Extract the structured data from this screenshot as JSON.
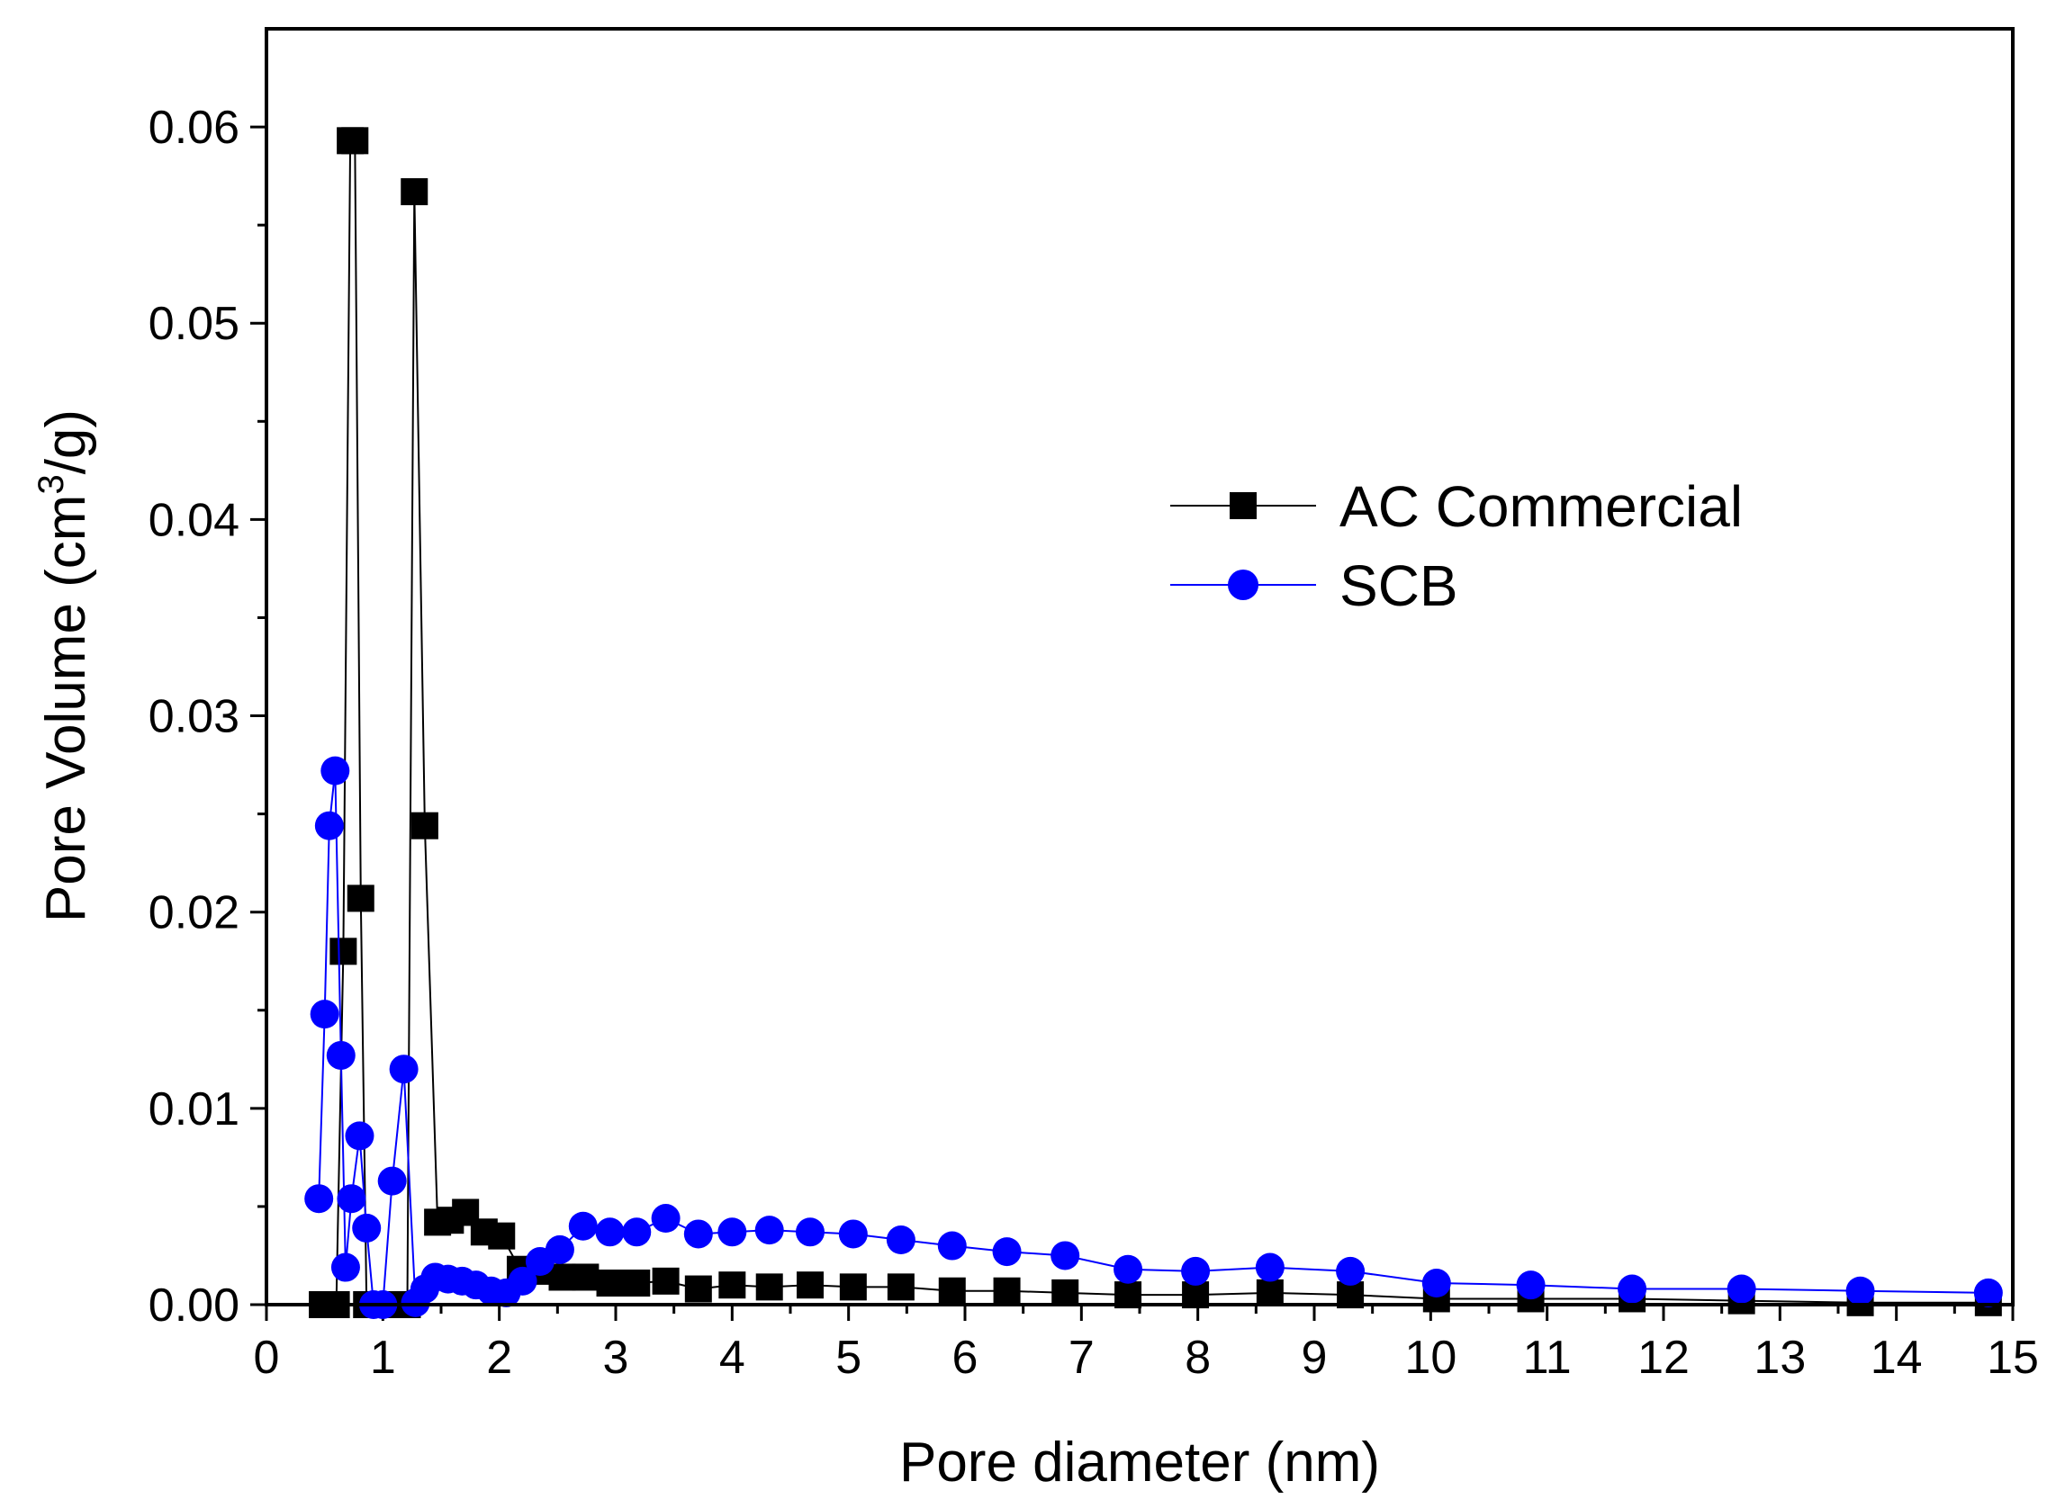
{
  "chart_data": {
    "type": "line",
    "title": "",
    "xlabel": "Pore diameter (nm)",
    "ylabel_main": "Pore Volume (cm",
    "ylabel_sup": "3",
    "ylabel_end": "/g)",
    "xlim": [
      0,
      15
    ],
    "ylim": [
      0,
      0.065
    ],
    "x_ticks": [
      "0",
      "1",
      "2",
      "3",
      "4",
      "5",
      "6",
      "7",
      "8",
      "9",
      "10",
      "11",
      "12",
      "13",
      "14",
      "15"
    ],
    "y_ticks": [
      "0.00",
      "0.01",
      "0.02",
      "0.03",
      "0.04",
      "0.05",
      "0.06"
    ],
    "grid": false,
    "legend_position": "center-right",
    "series": [
      {
        "name": "AC Commercial",
        "color": "#000000",
        "marker": "square",
        "x": [
          0.48,
          0.54,
          0.6,
          0.66,
          0.72,
          0.76,
          0.81,
          0.86,
          0.92,
          0.98,
          1.04,
          1.1,
          1.16,
          1.21,
          1.27,
          1.36,
          1.47,
          1.58,
          1.71,
          1.87,
          2.02,
          2.18,
          2.35,
          2.54,
          2.74,
          2.95,
          3.18,
          3.43,
          3.71,
          4.0,
          4.32,
          4.67,
          5.04,
          5.45,
          5.89,
          6.36,
          6.86,
          7.4,
          7.98,
          8.62,
          9.31,
          10.05,
          10.86,
          11.73,
          12.67,
          13.69,
          14.79
        ],
        "y": [
          0.0,
          0.0,
          0.0,
          0.018,
          0.0593,
          0.0593,
          0.0207,
          0.0,
          0.0,
          0.0,
          0.0,
          0.0,
          0.0,
          0.0,
          0.0567,
          0.0244,
          0.0042,
          0.0043,
          0.0047,
          0.0037,
          0.0035,
          0.0018,
          0.0017,
          0.0014,
          0.0014,
          0.0011,
          0.0011,
          0.0012,
          0.0008,
          0.001,
          0.0009,
          0.001,
          0.0009,
          0.0009,
          0.0007,
          0.0007,
          0.0006,
          0.0005,
          0.0005,
          0.0006,
          0.0005,
          0.0003,
          0.0003,
          0.0003,
          0.0002,
          0.0001,
          0.0001
        ]
      },
      {
        "name": "SCB",
        "color": "#0000ff",
        "marker": "circle",
        "x": [
          0.45,
          0.5,
          0.54,
          0.59,
          0.64,
          0.68,
          0.73,
          0.8,
          0.86,
          0.92,
          1.0,
          1.08,
          1.18,
          1.28,
          1.36,
          1.45,
          1.56,
          1.68,
          1.8,
          1.93,
          2.06,
          2.2,
          2.35,
          2.52,
          2.72,
          2.95,
          3.18,
          3.43,
          3.71,
          4.0,
          4.32,
          4.67,
          5.04,
          5.45,
          5.89,
          6.36,
          6.86,
          7.4,
          7.98,
          8.62,
          9.31,
          10.05,
          10.86,
          11.73,
          12.67,
          13.69,
          14.79
        ],
        "y": [
          0.0054,
          0.0148,
          0.0244,
          0.0272,
          0.0127,
          0.0019,
          0.0054,
          0.0086,
          0.0039,
          0.0,
          0.0,
          0.0063,
          0.012,
          0.0001,
          0.0008,
          0.0014,
          0.0013,
          0.0012,
          0.001,
          0.0007,
          0.0006,
          0.0012,
          0.0022,
          0.0028,
          0.004,
          0.0037,
          0.0037,
          0.0044,
          0.0036,
          0.0037,
          0.0038,
          0.0037,
          0.0036,
          0.0033,
          0.003,
          0.0027,
          0.0025,
          0.0018,
          0.0017,
          0.0019,
          0.0017,
          0.0011,
          0.001,
          0.0008,
          0.0008,
          0.0007,
          0.0006
        ]
      }
    ]
  }
}
